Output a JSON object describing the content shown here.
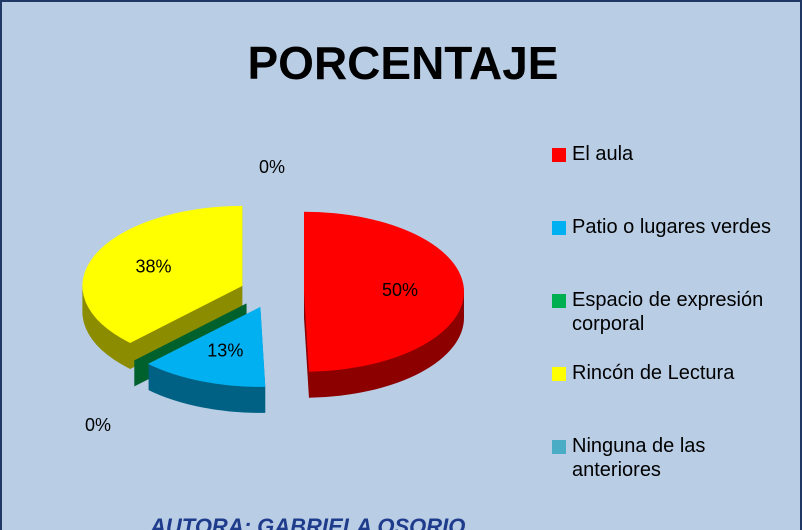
{
  "chart_data": {
    "type": "pie3d",
    "title": "PORCENTAJE",
    "categories": [
      "El aula",
      "Patio o lugares verdes",
      "Espacio de expresión corporal",
      "Rincón de Lectura",
      "Ninguna de las anteriores"
    ],
    "values": [
      50,
      13,
      0,
      38,
      0
    ],
    "value_labels": [
      "50%",
      "13%",
      "0%",
      "38%",
      "0%"
    ],
    "colors": [
      "#ff0000",
      "#00b0f0",
      "#00b050",
      "#ffff00",
      "#4bacc6"
    ],
    "legend": "right",
    "author": "AUTORA:  GABRIELA OSORIO"
  }
}
